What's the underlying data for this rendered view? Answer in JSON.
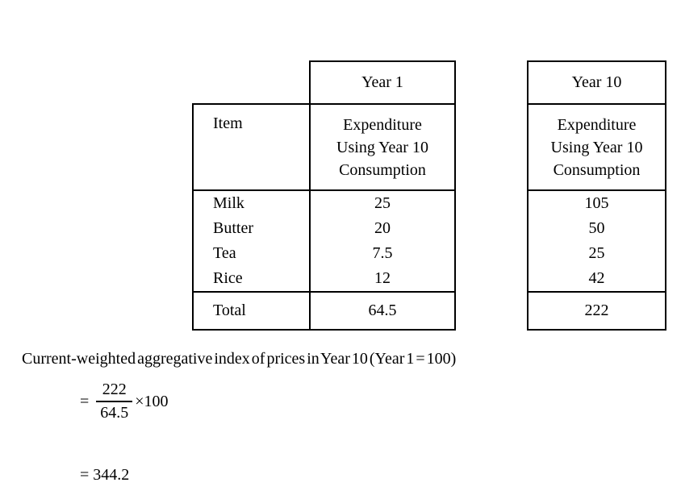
{
  "page": {
    "background_color": "#ffffff",
    "text_color": "#000000",
    "border_color": "#000000"
  },
  "left_table": {
    "year_header": "Year 1",
    "item_header": "Item",
    "column_header_lines": [
      "Expenditure",
      "Using Year 10",
      "Consumption"
    ],
    "rows": [
      {
        "item": "Milk",
        "value": "25"
      },
      {
        "item": "Butter",
        "value": "20"
      },
      {
        "item": "Tea",
        "value": "7.5"
      },
      {
        "item": "Rice",
        "value": "12"
      }
    ],
    "total_label": "Total",
    "total_value": "64.5"
  },
  "right_table": {
    "year_header": "Year 10",
    "column_header_lines": [
      "Expenditure",
      "Using Year 10",
      "Consumption"
    ],
    "values": [
      "105",
      "50",
      "25",
      "42"
    ],
    "total_value": "222"
  },
  "calculation": {
    "description": "Current-weighted aggregative index of prices in Year 10 (Year 1 = 100)",
    "equals_sign": "=",
    "fraction_numerator": "222",
    "fraction_denominator": "64.5",
    "multiplier": "×100",
    "result_line": "= 344.2"
  },
  "chart_data": {
    "type": "table",
    "title": "Current-weighted aggregative price index working table",
    "columns": [
      "Item",
      "Year 1 Expenditure Using Year 10 Consumption",
      "Year 10 Expenditure Using Year 10 Consumption"
    ],
    "rows": [
      [
        "Milk",
        25,
        105
      ],
      [
        "Butter",
        20,
        50
      ],
      [
        "Tea",
        7.5,
        25
      ],
      [
        "Rice",
        12,
        42
      ],
      [
        "Total",
        64.5,
        222
      ]
    ],
    "result": 344.2
  }
}
